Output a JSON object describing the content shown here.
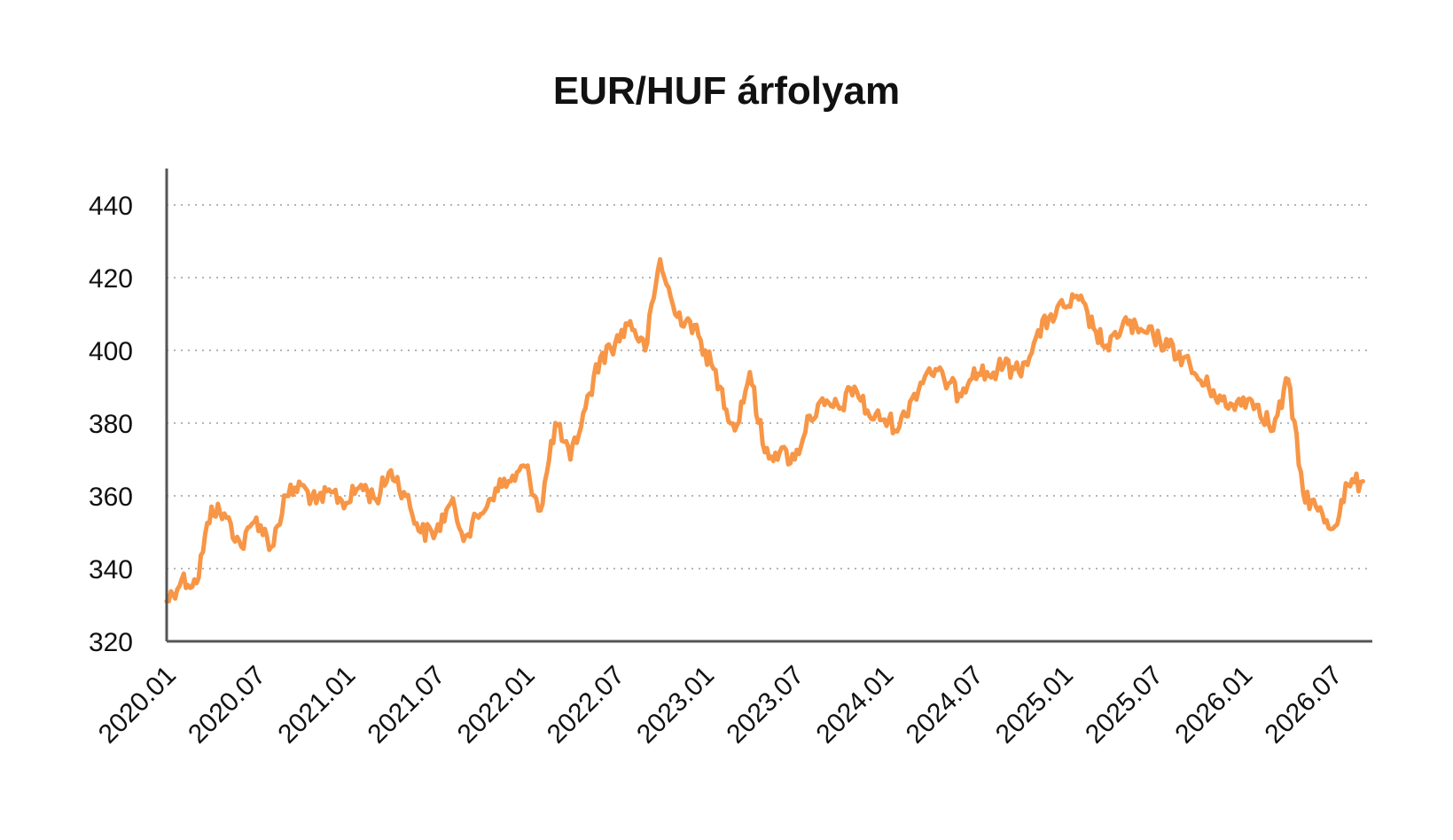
{
  "chart_data": {
    "type": "line",
    "title": "EUR/HUF árfolyam",
    "xlabel": "",
    "ylabel": "",
    "ylim": [
      320,
      450
    ],
    "yticks": [
      320,
      340,
      360,
      380,
      400,
      420,
      440
    ],
    "xticks": [
      "2020.01",
      "2020.07",
      "2021.01",
      "2021.07",
      "2022.01",
      "2022.07",
      "2023.01",
      "2023.07",
      "2024.01",
      "2024.07",
      "2025.01",
      "2025.07",
      "2026.01",
      "2026.07"
    ],
    "grid": "horizontal-dotted",
    "line_color": "#F79646",
    "series": [
      {
        "x": [
          "2020.01",
          "2020.02",
          "2020.03",
          "2020.04",
          "2020.05",
          "2020.06",
          "2020.07",
          "2020.08",
          "2020.09",
          "2020.10",
          "2020.11",
          "2020.12",
          "2021.01",
          "2021.02",
          "2021.03",
          "2021.04",
          "2021.05",
          "2021.06",
          "2021.07",
          "2021.08",
          "2021.09",
          "2021.10",
          "2021.11",
          "2021.12",
          "2022.01",
          "2022.02",
          "2022.03",
          "2022.04",
          "2022.05",
          "2022.06",
          "2022.07",
          "2022.08",
          "2022.09",
          "2022.10",
          "2022.11",
          "2022.12",
          "2023.01",
          "2023.02",
          "2023.03",
          "2023.04",
          "2023.05",
          "2023.06",
          "2023.07",
          "2023.08",
          "2023.09",
          "2023.10",
          "2023.11",
          "2023.12",
          "2024.01",
          "2024.02",
          "2024.03",
          "2024.04",
          "2024.05",
          "2024.06",
          "2024.07",
          "2024.08",
          "2024.09",
          "2024.10",
          "2024.11",
          "2024.12",
          "2025.01",
          "2025.02",
          "2025.03",
          "2025.04",
          "2025.05",
          "2025.06",
          "2025.07",
          "2025.08",
          "2025.09",
          "2025.10",
          "2025.11",
          "2025.12",
          "2026.01",
          "2026.02",
          "2026.03",
          "2026.04",
          "2026.05",
          "2026.06",
          "2026.07",
          "2026.08",
          "2026.09"
        ],
        "values": [
          331,
          337,
          336,
          357,
          354,
          346,
          354,
          346,
          360,
          363,
          358,
          361,
          358,
          363,
          359,
          367,
          360,
          350,
          350,
          358,
          349,
          355,
          362,
          364,
          368,
          356,
          380,
          370,
          384,
          398,
          402,
          408,
          400,
          425,
          410,
          408,
          400,
          390,
          378,
          394,
          372,
          372,
          370,
          382,
          385,
          384,
          390,
          382,
          381,
          379,
          388,
          395,
          392,
          388,
          395,
          393,
          396,
          394,
          402,
          409,
          412,
          414,
          406,
          400,
          408,
          405,
          404,
          401,
          398,
          392,
          389,
          384,
          387,
          385,
          378,
          392,
          361,
          356,
          351,
          363,
          364
        ]
      }
    ]
  }
}
